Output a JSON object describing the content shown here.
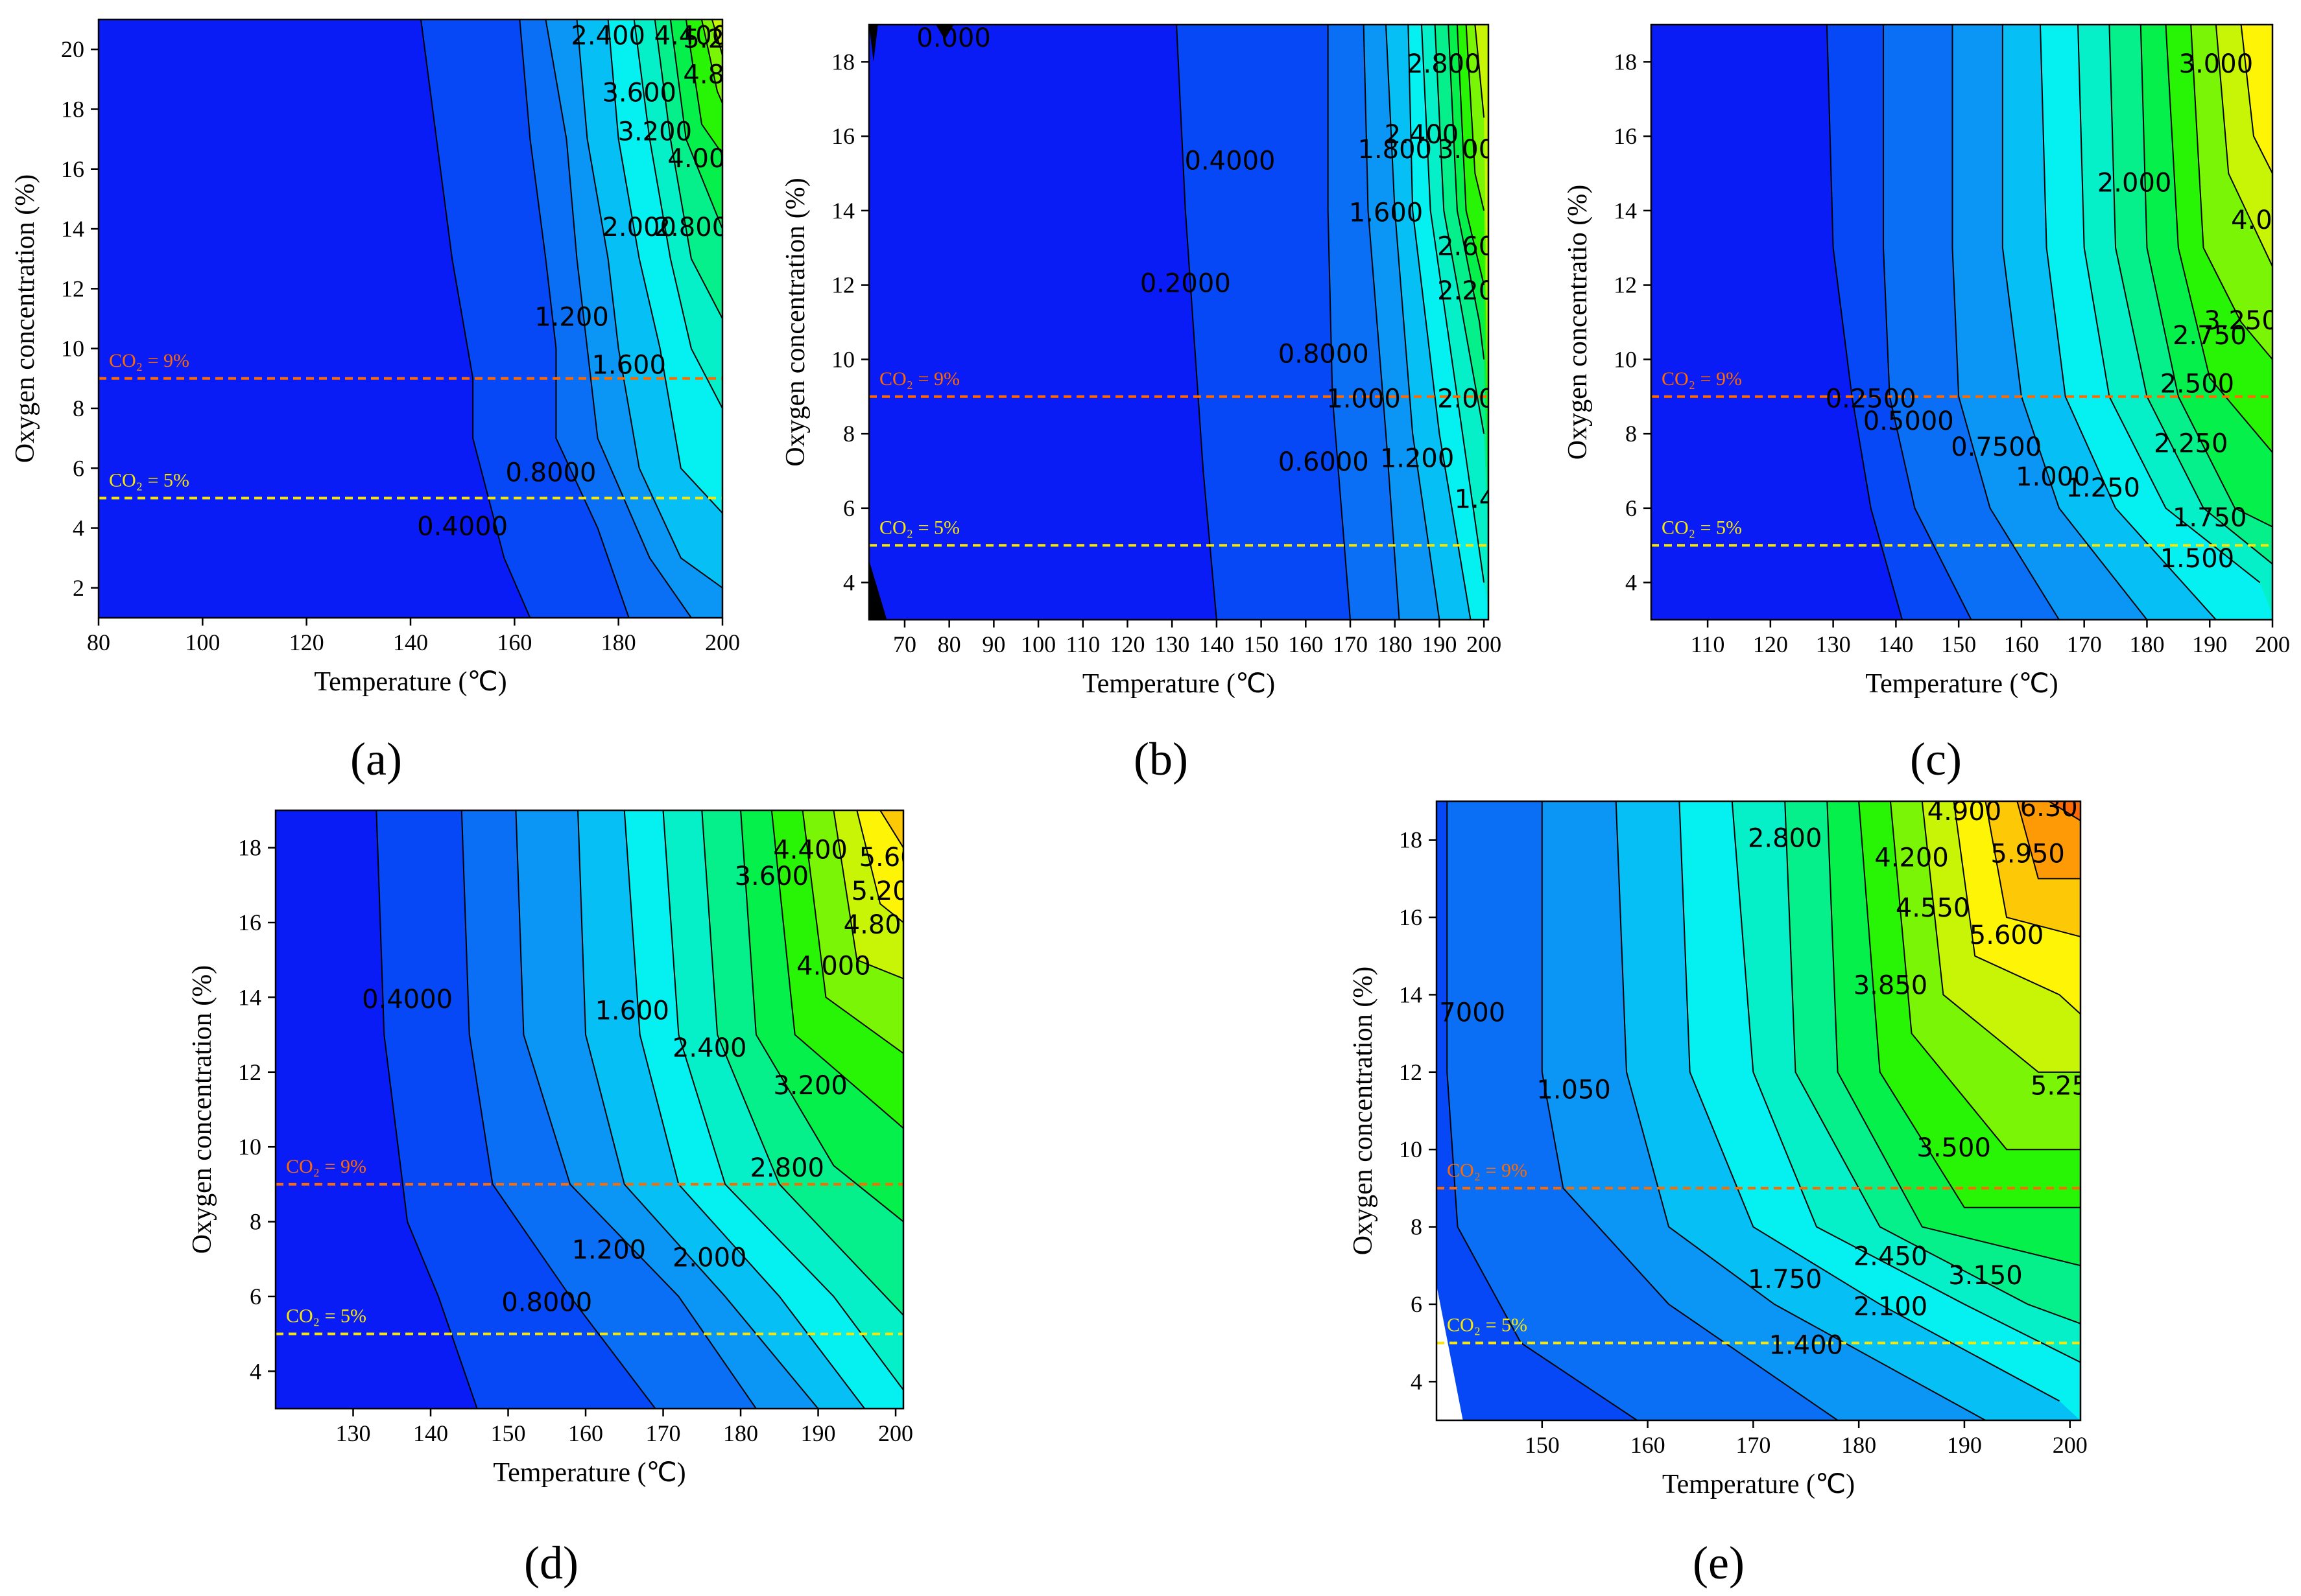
{
  "chart_data": [
    {
      "panel": "a",
      "type": "contour",
      "xlabel": "Temperature (℃)",
      "ylabel": "Oxygen concentration (%)",
      "xlim": [
        80,
        200
      ],
      "ylim": [
        1,
        21
      ],
      "xticks": [
        80,
        100,
        120,
        140,
        160,
        180,
        200
      ],
      "yticks": [
        2,
        4,
        6,
        8,
        10,
        12,
        14,
        16,
        18,
        20
      ],
      "contour_labels": [
        {
          "text": "2.400",
          "x": 178,
          "y": 20.4
        },
        {
          "text": "4.400",
          "x": 194,
          "y": 20.4
        },
        {
          "text": "5.20",
          "x": 198,
          "y": 20.3
        },
        {
          "text": "3.600",
          "x": 184,
          "y": 18.5
        },
        {
          "text": "4.80",
          "x": 198,
          "y": 19.1
        },
        {
          "text": "3.200",
          "x": 187,
          "y": 17.2
        },
        {
          "text": "4.00",
          "x": 195,
          "y": 16.3
        },
        {
          "text": "2.000",
          "x": 184,
          "y": 14.0
        },
        {
          "text": "2.800",
          "x": 194,
          "y": 14.0
        },
        {
          "text": "1.200",
          "x": 171,
          "y": 11.0
        },
        {
          "text": "1.600",
          "x": 182,
          "y": 9.4
        },
        {
          "text": "0.8000",
          "x": 167,
          "y": 5.8
        },
        {
          "text": "0.4000",
          "x": 150,
          "y": 4.0
        }
      ],
      "reference_lines": [
        {
          "label": "CO₂ = 9%",
          "y": 9,
          "color": "#ff6a00"
        },
        {
          "label": "CO₂ = 5%",
          "y": 5,
          "color": "#f6e60a"
        }
      ]
    },
    {
      "panel": "b",
      "type": "contour",
      "xlabel": "Temperature (℃)",
      "ylabel": "Oxygen concentration (%)",
      "xlim": [
        62,
        201
      ],
      "ylim": [
        3,
        19
      ],
      "xticks": [
        70,
        80,
        90,
        100,
        110,
        120,
        130,
        140,
        150,
        160,
        170,
        180,
        190,
        200
      ],
      "yticks": [
        4,
        6,
        8,
        10,
        12,
        14,
        16,
        18
      ],
      "contour_labels": [
        {
          "text": "0.000",
          "x": 81,
          "y": 18.6
        },
        {
          "text": "2.800",
          "x": 191,
          "y": 17.9
        },
        {
          "text": "2.400",
          "x": 186,
          "y": 16.0
        },
        {
          "text": "3.00",
          "x": 196,
          "y": 15.6
        },
        {
          "text": "0.4000",
          "x": 143,
          "y": 15.3
        },
        {
          "text": "1.800",
          "x": 180,
          "y": 15.6
        },
        {
          "text": "1.600",
          "x": 178,
          "y": 13.9
        },
        {
          "text": "2.60",
          "x": 196,
          "y": 13.0
        },
        {
          "text": "0.2000",
          "x": 133,
          "y": 12.0
        },
        {
          "text": "2.20",
          "x": 196,
          "y": 11.8
        },
        {
          "text": "0.8000",
          "x": 164,
          "y": 10.1
        },
        {
          "text": "1.000",
          "x": 173,
          "y": 8.9
        },
        {
          "text": "2.00",
          "x": 196,
          "y": 8.9
        },
        {
          "text": "1.200",
          "x": 185,
          "y": 7.3
        },
        {
          "text": "0.6000",
          "x": 164,
          "y": 7.2
        },
        {
          "text": "1.4",
          "x": 198,
          "y": 6.2
        }
      ],
      "reference_lines": [
        {
          "label": "CO₂ = 9%",
          "y": 9,
          "color": "#ff6a00"
        },
        {
          "label": "CO₂ = 5%",
          "y": 5,
          "color": "#f6e60a"
        }
      ]
    },
    {
      "panel": "c",
      "type": "contour",
      "xlabel": "Temperature (℃)",
      "ylabel": "Oxygen concentratio (%)",
      "xlim": [
        101,
        200
      ],
      "ylim": [
        3,
        19
      ],
      "xticks": [
        110,
        120,
        130,
        140,
        150,
        160,
        170,
        180,
        190,
        200
      ],
      "yticks": [
        4,
        6,
        8,
        10,
        12,
        14,
        16,
        18
      ],
      "contour_labels": [
        {
          "text": "3.000",
          "x": 191,
          "y": 17.9
        },
        {
          "text": "2.000",
          "x": 178,
          "y": 14.7
        },
        {
          "text": "4.00",
          "x": 198,
          "y": 13.7
        },
        {
          "text": "3.250",
          "x": 195,
          "y": 11.0
        },
        {
          "text": "2.750",
          "x": 190,
          "y": 10.6
        },
        {
          "text": "2.500",
          "x": 188,
          "y": 9.3
        },
        {
          "text": "0.2500",
          "x": 136,
          "y": 8.9
        },
        {
          "text": "0.5000",
          "x": 142,
          "y": 8.3
        },
        {
          "text": "2.250",
          "x": 187,
          "y": 7.7
        },
        {
          "text": "0.7500",
          "x": 156,
          "y": 7.6
        },
        {
          "text": "1.000",
          "x": 165,
          "y": 6.8
        },
        {
          "text": "1.250",
          "x": 173,
          "y": 6.5
        },
        {
          "text": "1.750",
          "x": 190,
          "y": 5.7
        },
        {
          "text": "1.500",
          "x": 188,
          "y": 4.6
        }
      ],
      "reference_lines": [
        {
          "label": "CO₂ = 9%",
          "y": 9,
          "color": "#ff6a00"
        },
        {
          "label": "CO₂ = 5%",
          "y": 5,
          "color": "#f6e60a"
        }
      ]
    },
    {
      "panel": "d",
      "type": "contour",
      "xlabel": "Temperature (℃)",
      "ylabel": "Oxygen concentration (%)",
      "xlim": [
        120,
        201
      ],
      "ylim": [
        3,
        19
      ],
      "xticks": [
        130,
        140,
        150,
        160,
        170,
        180,
        190,
        200
      ],
      "yticks": [
        4,
        6,
        8,
        10,
        12,
        14,
        16,
        18
      ],
      "contour_labels": [
        {
          "text": "4.400",
          "x": 189,
          "y": 17.9
        },
        {
          "text": "5.60",
          "x": 199,
          "y": 17.7
        },
        {
          "text": "3.600",
          "x": 184,
          "y": 17.2
        },
        {
          "text": "5.20",
          "x": 198,
          "y": 16.8
        },
        {
          "text": "4.80",
          "x": 197,
          "y": 15.9
        },
        {
          "text": "4.000",
          "x": 192,
          "y": 14.8
        },
        {
          "text": "0.4000",
          "x": 137,
          "y": 13.9
        },
        {
          "text": "1.600",
          "x": 166,
          "y": 13.6
        },
        {
          "text": "2.400",
          "x": 176,
          "y": 12.6
        },
        {
          "text": "3.200",
          "x": 189,
          "y": 11.6
        },
        {
          "text": "2.800",
          "x": 186,
          "y": 9.4
        },
        {
          "text": "1.200",
          "x": 163,
          "y": 7.2
        },
        {
          "text": "2.000",
          "x": 176,
          "y": 7.0
        },
        {
          "text": "0.8000",
          "x": 155,
          "y": 5.8
        }
      ],
      "reference_lines": [
        {
          "label": "CO₂ = 9%",
          "y": 9,
          "color": "#ff6a00"
        },
        {
          "label": "CO₂ = 5%",
          "y": 5,
          "color": "#f6e60a"
        }
      ]
    },
    {
      "panel": "e",
      "type": "contour",
      "xlabel": "Temperature (℃)",
      "ylabel": "Oxygen concentration (%)",
      "xlim": [
        140,
        201
      ],
      "ylim": [
        3,
        19
      ],
      "xticks": [
        150,
        160,
        170,
        180,
        190,
        200
      ],
      "yticks": [
        4,
        6,
        8,
        10,
        12,
        14,
        16,
        18
      ],
      "contour_labels": [
        {
          "text": "4.900",
          "x": 190,
          "y": 18.7
        },
        {
          "text": "6.30",
          "x": 198,
          "y": 18.8
        },
        {
          "text": "2.800",
          "x": 173,
          "y": 18.0
        },
        {
          "text": "4.200",
          "x": 185,
          "y": 17.5
        },
        {
          "text": "5.950",
          "x": 196,
          "y": 17.6
        },
        {
          "text": "4.550",
          "x": 187,
          "y": 16.2
        },
        {
          "text": "5.600",
          "x": 194,
          "y": 15.5
        },
        {
          "text": "3.850",
          "x": 183,
          "y": 14.2
        },
        {
          "text": ".7000",
          "x": 143,
          "y": 13.5
        },
        {
          "text": "1.050",
          "x": 153,
          "y": 11.5
        },
        {
          "text": "5.25",
          "x": 199,
          "y": 11.6
        },
        {
          "text": "3.500",
          "x": 189,
          "y": 10.0
        },
        {
          "text": "2.450",
          "x": 183,
          "y": 7.2
        },
        {
          "text": "1.750",
          "x": 173,
          "y": 6.6
        },
        {
          "text": "3.150",
          "x": 192,
          "y": 6.7
        },
        {
          "text": "2.100",
          "x": 183,
          "y": 5.9
        },
        {
          "text": "1.400",
          "x": 175,
          "y": 4.9
        }
      ],
      "reference_lines": [
        {
          "label": "CO₂ = 9%",
          "y": 9,
          "color": "#ff6a00"
        },
        {
          "label": "CO₂ = 5%",
          "y": 5,
          "color": "#f6e60a"
        }
      ]
    }
  ],
  "panel_labels": [
    "(a)",
    "(b)",
    "(c)",
    "(d)",
    "(e)"
  ],
  "colors": {
    "level_palette": [
      "#000000",
      "#0a1cf5",
      "#0648f5",
      "#0a6ff5",
      "#0b95f5",
      "#05bff5",
      "#05f0f0",
      "#05f0c8",
      "#05f08a",
      "#05f04a",
      "#28f505",
      "#7af505",
      "#c8f505",
      "#fdf505",
      "#fdc805",
      "#fd9a05",
      "#fd6a05",
      "#fd2a05"
    ],
    "contour_line": "#000000"
  }
}
